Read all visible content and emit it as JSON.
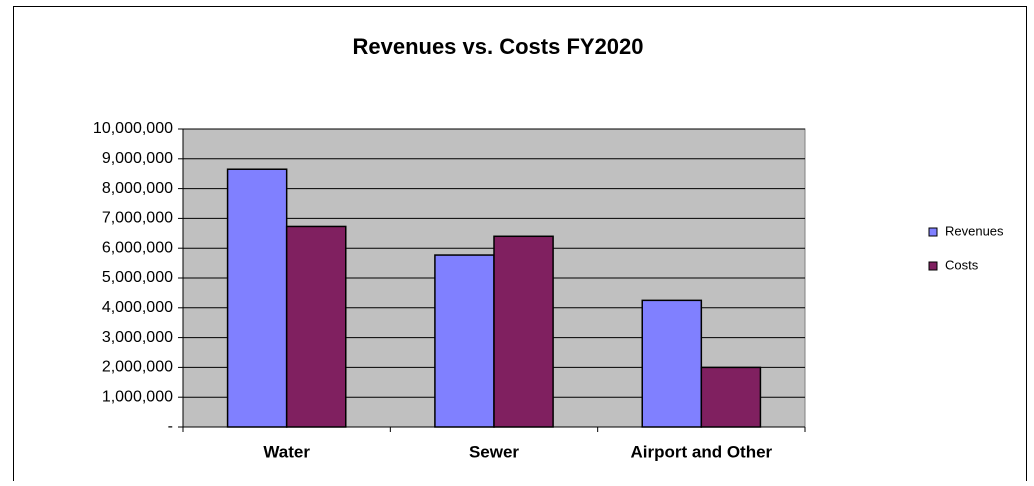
{
  "chart_data": {
    "type": "bar",
    "title": "Revenues vs. Costs FY2020",
    "categories": [
      "Water",
      "Sewer",
      "Airport and Other"
    ],
    "series": [
      {
        "name": "Revenues",
        "color": "#8080ff",
        "values": [
          8650000,
          5770000,
          4250000
        ]
      },
      {
        "name": "Costs",
        "color": "#802060",
        "values": [
          6730000,
          6400000,
          2000000
        ]
      }
    ],
    "ylim": [
      0,
      10000000
    ],
    "yticks": [
      {
        "value": 0,
        "label": "-"
      },
      {
        "value": 1000000,
        "label": "1,000,000"
      },
      {
        "value": 2000000,
        "label": "2,000,000"
      },
      {
        "value": 3000000,
        "label": "3,000,000"
      },
      {
        "value": 4000000,
        "label": "4,000,000"
      },
      {
        "value": 5000000,
        "label": "5,000,000"
      },
      {
        "value": 6000000,
        "label": "6,000,000"
      },
      {
        "value": 7000000,
        "label": "7,000,000"
      },
      {
        "value": 8000000,
        "label": "8,000,000"
      },
      {
        "value": 9000000,
        "label": "9,000,000"
      },
      {
        "value": 10000000,
        "label": "10,000,000"
      }
    ],
    "grid": true,
    "legend": "right"
  }
}
